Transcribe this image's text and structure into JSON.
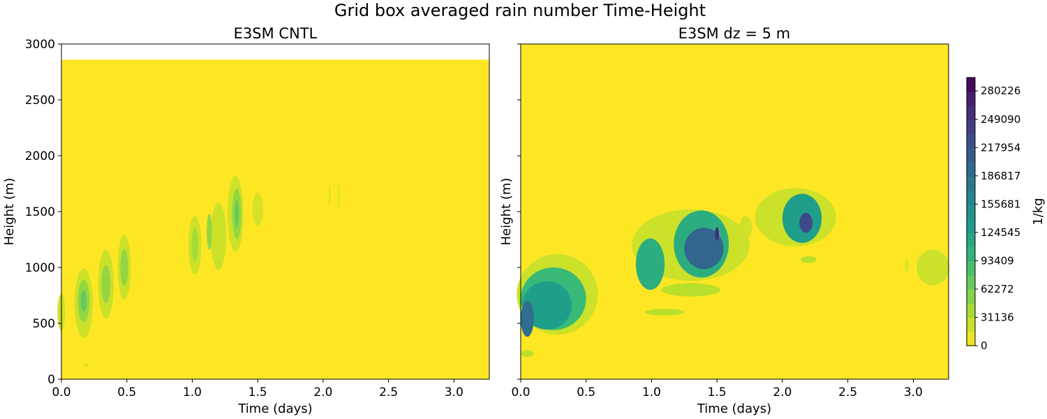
{
  "chart_data": {
    "type": "heatmap",
    "suptitle": "Grid box averaged rain number Time-Height",
    "colormap": "viridis_r",
    "colorbar": {
      "label": "1/kg",
      "min": 0,
      "max": 295000,
      "ticks": [
        0,
        31136,
        62272,
        93409,
        124545,
        155681,
        186817,
        217954,
        249090,
        280226
      ],
      "tick_labels": [
        "0",
        "31136",
        "62272",
        "93409",
        "124545",
        "155681",
        "186817",
        "217954",
        "249090",
        "280226"
      ]
    },
    "panels": [
      {
        "title": "E3SM CNTL",
        "xlabel": "Time (days)",
        "ylabel": "Height (m)",
        "xlim": [
          0,
          3.27
        ],
        "ylim": [
          0,
          3000
        ],
        "data_top": 2860,
        "xticks": [
          0.0,
          0.5,
          1.0,
          1.5,
          2.0,
          2.5,
          3.0
        ],
        "xtick_labels": [
          "0.0",
          "0.5",
          "1.0",
          "1.5",
          "2.0",
          "2.5",
          "3.0"
        ],
        "yticks": [
          0,
          500,
          1000,
          1500,
          2000,
          2500,
          3000
        ],
        "ytick_labels": [
          "0",
          "500",
          "1000",
          "1500",
          "2000",
          "2500",
          "3000"
        ],
        "cells": [
          {
            "t": 0.0,
            "h": 600,
            "dt": 0.06,
            "dh": 330,
            "v": 22000
          },
          {
            "t": 0.17,
            "h": 680,
            "dt": 0.14,
            "dh": 620,
            "v": 22000
          },
          {
            "t": 0.17,
            "h": 700,
            "dt": 0.09,
            "dh": 380,
            "v": 48000
          },
          {
            "t": 0.17,
            "h": 700,
            "dt": 0.045,
            "dh": 190,
            "v": 72000
          },
          {
            "t": 0.34,
            "h": 850,
            "dt": 0.12,
            "dh": 620,
            "v": 22000
          },
          {
            "t": 0.34,
            "h": 850,
            "dt": 0.07,
            "dh": 340,
            "v": 48000
          },
          {
            "t": 0.48,
            "h": 1000,
            "dt": 0.1,
            "dh": 580,
            "v": 22000
          },
          {
            "t": 0.48,
            "h": 1000,
            "dt": 0.06,
            "dh": 330,
            "v": 48000
          },
          {
            "t": 1.02,
            "h": 1200,
            "dt": 0.1,
            "dh": 520,
            "v": 22000
          },
          {
            "t": 1.02,
            "h": 1200,
            "dt": 0.05,
            "dh": 300,
            "v": 40000
          },
          {
            "t": 1.2,
            "h": 1280,
            "dt": 0.12,
            "dh": 600,
            "v": 22000
          },
          {
            "t": 1.13,
            "h": 1320,
            "dt": 0.04,
            "dh": 320,
            "v": 48000
          },
          {
            "t": 1.33,
            "h": 1480,
            "dt": 0.12,
            "dh": 680,
            "v": 22000
          },
          {
            "t": 1.34,
            "h": 1480,
            "dt": 0.07,
            "dh": 450,
            "v": 48000
          },
          {
            "t": 1.34,
            "h": 1480,
            "dt": 0.03,
            "dh": 240,
            "v": 72000
          },
          {
            "t": 1.5,
            "h": 1520,
            "dt": 0.08,
            "dh": 300,
            "v": 18000
          },
          {
            "t": 2.05,
            "h": 1640,
            "dt": 0.012,
            "dh": 200,
            "v": 18000
          },
          {
            "t": 2.12,
            "h": 1640,
            "dt": 0.012,
            "dh": 200,
            "v": 18000
          },
          {
            "t": 0.19,
            "h": 125,
            "dt": 0.03,
            "dh": 30,
            "v": 18000
          }
        ]
      },
      {
        "title": "E3SM dz = 5 m",
        "xlabel": "Time (days)",
        "ylabel": "Height (m)",
        "xlim": [
          0,
          3.27
        ],
        "ylim": [
          0,
          3000
        ],
        "data_top": 3000,
        "xticks": [
          0.0,
          0.5,
          1.0,
          1.5,
          2.0,
          2.5,
          3.0
        ],
        "xtick_labels": [
          "0.0",
          "0.5",
          "1.0",
          "1.5",
          "2.0",
          "2.5",
          "3.0"
        ],
        "yticks": [
          0,
          500,
          1000,
          1500,
          2000,
          2500,
          3000
        ],
        "ytick_labels": [
          "",
          "",
          "",
          "",
          "",
          "",
          ""
        ],
        "cells": [
          {
            "t": 0.28,
            "h": 760,
            "dt": 0.62,
            "dh": 720,
            "v": 22000
          },
          {
            "t": 0.25,
            "h": 720,
            "dt": 0.5,
            "dh": 560,
            "v": 95000
          },
          {
            "t": 0.2,
            "h": 660,
            "dt": 0.38,
            "dh": 430,
            "v": 130000
          },
          {
            "t": 0.05,
            "h": 540,
            "dt": 0.1,
            "dh": 320,
            "v": 190000
          },
          {
            "t": 0.05,
            "h": 230,
            "dt": 0.1,
            "dh": 60,
            "v": 30000
          },
          {
            "t": 1.3,
            "h": 1200,
            "dt": 0.9,
            "dh": 640,
            "v": 22000
          },
          {
            "t": 0.99,
            "h": 1030,
            "dt": 0.22,
            "dh": 460,
            "v": 110000
          },
          {
            "t": 1.38,
            "h": 1210,
            "dt": 0.42,
            "dh": 600,
            "v": 110000
          },
          {
            "t": 1.4,
            "h": 1170,
            "dt": 0.3,
            "dh": 370,
            "v": 200000
          },
          {
            "t": 1.5,
            "h": 1300,
            "dt": 0.03,
            "dh": 120,
            "v": 260000
          },
          {
            "t": 1.3,
            "h": 800,
            "dt": 0.45,
            "dh": 120,
            "v": 30000
          },
          {
            "t": 1.1,
            "h": 600,
            "dt": 0.3,
            "dh": 60,
            "v": 30000
          },
          {
            "t": 2.1,
            "h": 1450,
            "dt": 0.62,
            "dh": 520,
            "v": 22000
          },
          {
            "t": 2.15,
            "h": 1440,
            "dt": 0.3,
            "dh": 440,
            "v": 130000
          },
          {
            "t": 2.18,
            "h": 1400,
            "dt": 0.1,
            "dh": 180,
            "v": 230000
          },
          {
            "t": 2.2,
            "h": 1070,
            "dt": 0.12,
            "dh": 60,
            "v": 30000
          },
          {
            "t": 3.15,
            "h": 1000,
            "dt": 0.25,
            "dh": 320,
            "v": 22000
          },
          {
            "t": 2.95,
            "h": 1020,
            "dt": 0.03,
            "dh": 120,
            "v": 15000
          },
          {
            "t": 1.72,
            "h": 1360,
            "dt": 0.1,
            "dh": 200,
            "v": 20000
          }
        ]
      }
    ]
  }
}
